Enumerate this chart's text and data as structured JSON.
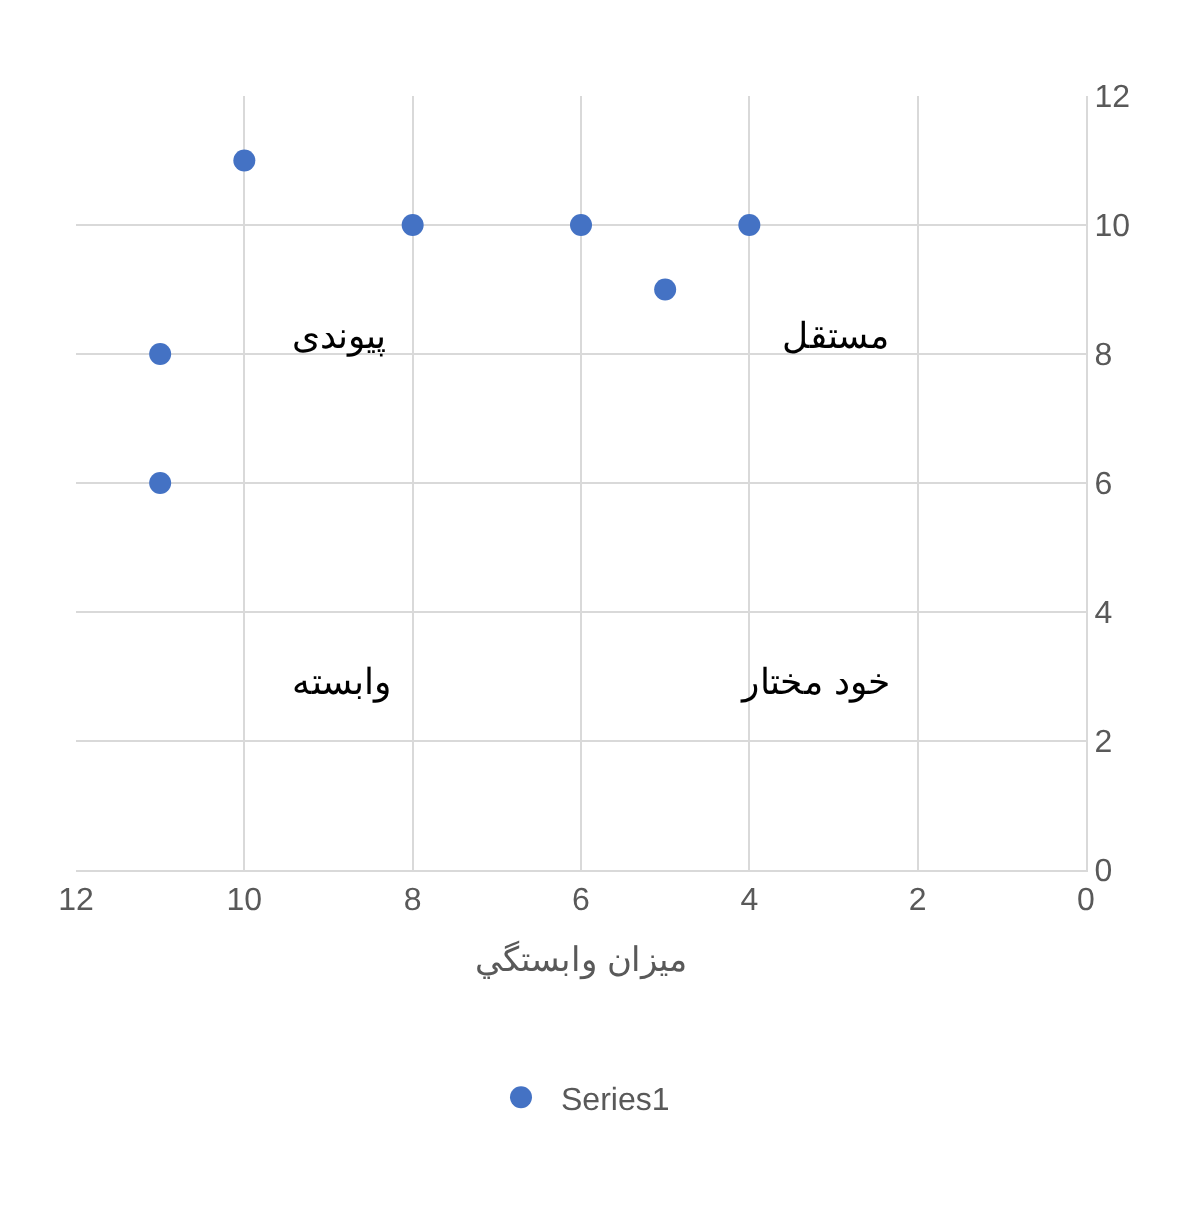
{
  "chart_data": {
    "type": "scatter",
    "xlabel": "میزان وابستگي",
    "x": [
      10,
      8,
      6,
      4,
      5,
      11,
      11
    ],
    "series": [
      {
        "name": "Series1",
        "color": "#4472c4",
        "values": [
          11,
          10,
          10,
          10,
          9,
          8,
          6
        ]
      }
    ],
    "xlim": [
      12,
      0
    ],
    "xticks": [
      12,
      10,
      8,
      6,
      4,
      2,
      0
    ],
    "ylim": [
      0,
      12
    ],
    "yticks": [
      0,
      2,
      4,
      6,
      8,
      10,
      12
    ],
    "annotations": [
      "پیوندی",
      "مستقل",
      "وابسته",
      "خود مختار"
    ],
    "grid": true,
    "legend": "bottom",
    "marker": "circle"
  }
}
